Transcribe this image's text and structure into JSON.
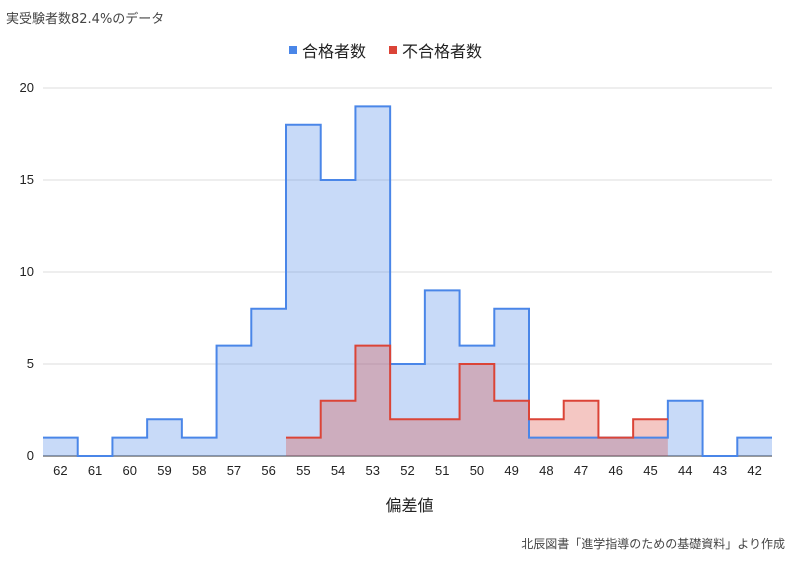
{
  "note": "実受験者数82.4%のデータ",
  "source": "北辰図書「進学指導のための基礎資料」より作成",
  "chart_data": {
    "type": "area",
    "step": true,
    "categories": [
      "62",
      "61",
      "60",
      "59",
      "58",
      "57",
      "56",
      "55",
      "54",
      "53",
      "52",
      "51",
      "50",
      "49",
      "48",
      "47",
      "46",
      "45",
      "44",
      "43",
      "42"
    ],
    "series": [
      {
        "name": "合格者数",
        "color": "#4a86e8",
        "values": [
          1,
          0,
          1,
          2,
          1,
          6,
          8,
          18,
          15,
          19,
          5,
          9,
          6,
          8,
          1,
          1,
          1,
          1,
          3,
          0,
          1
        ]
      },
      {
        "name": "不合格者数",
        "color": "#db4437",
        "values": [
          null,
          null,
          null,
          null,
          null,
          null,
          null,
          1,
          3,
          6,
          2,
          2,
          5,
          3,
          2,
          3,
          1,
          2,
          null,
          null,
          null
        ]
      }
    ],
    "xlabel": "偏差値",
    "ylabel": "",
    "ylim": [
      0,
      20
    ],
    "yticks": [
      0,
      5,
      10,
      15,
      20
    ],
    "grid": true,
    "legend": "top"
  }
}
